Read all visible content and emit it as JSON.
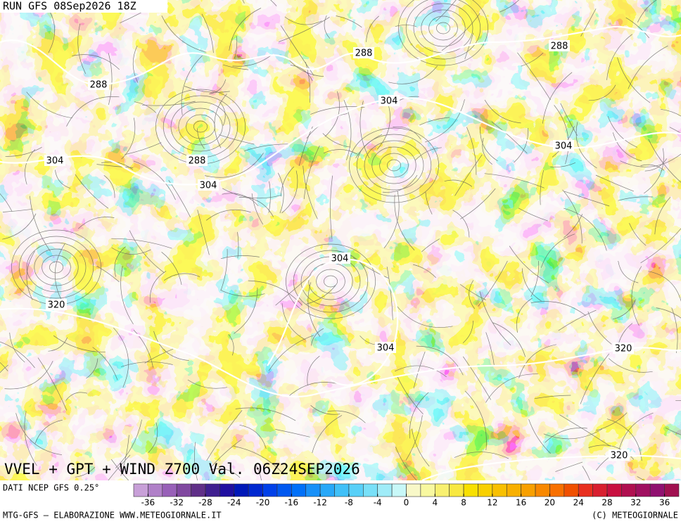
{
  "header": {
    "run": "RUN GFS 08Sep2026 18Z"
  },
  "map": {
    "title": "VVEL + GPT + WIND Z700 Val. 06Z24SEP2026",
    "contour_labels": [
      "288",
      "288",
      "288",
      "288",
      "304",
      "304",
      "304",
      "304",
      "304",
      "304",
      "320",
      "320",
      "320"
    ]
  },
  "footer": {
    "source": "DATI NCEP GFS 0.25°",
    "credit": "MTG-GFS — ELABORAZIONE WWW.METEOGIORNALE.IT",
    "copyright": "(C) METEOGIORNALE"
  },
  "colorbar": {
    "lim": [
      -38,
      38
    ],
    "ticks": [
      -36,
      -32,
      -28,
      -24,
      -20,
      -16,
      -12,
      -8,
      -4,
      0,
      4,
      8,
      12,
      16,
      20,
      24,
      28,
      32,
      36
    ],
    "colors": [
      "#c8a0d8",
      "#b080c8",
      "#9860b8",
      "#8048a0",
      "#603088",
      "#402090",
      "#2010a0",
      "#0018b8",
      "#0028d0",
      "#0040e8",
      "#0058f0",
      "#0070f8",
      "#1890f8",
      "#28a8f8",
      "#40c0f8",
      "#58d0f8",
      "#78e0f8",
      "#a0ecf8",
      "#c8f8f8",
      "#f8f8c8",
      "#f8f8a0",
      "#f8f070",
      "#f8e840",
      "#f8e000",
      "#f8d000",
      "#f8c000",
      "#f8b000",
      "#f8a000",
      "#f88800",
      "#f87000",
      "#f05000",
      "#e83020",
      "#d82030",
      "#c81040",
      "#b01050",
      "#a01060",
      "#901070",
      "#a01050"
    ]
  }
}
